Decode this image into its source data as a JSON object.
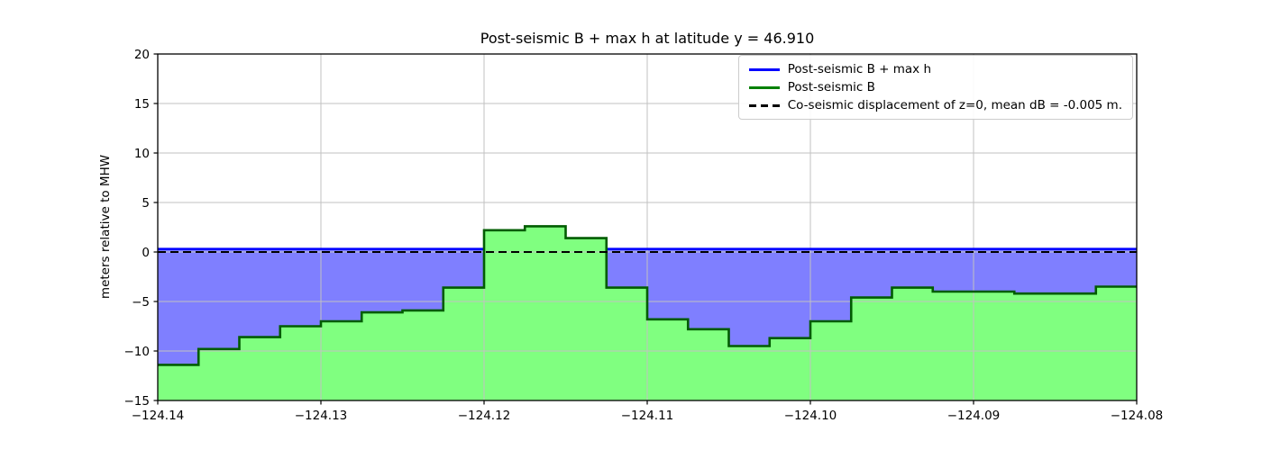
{
  "chart_data": {
    "type": "area",
    "title": "Post-seismic B + max h at latitude y = 46.910",
    "xlabel": "",
    "ylabel": "meters relative to MHW",
    "xlim": [
      -124.14,
      -124.08
    ],
    "ylim": [
      -15,
      20
    ],
    "grid": true,
    "xticks": [
      {
        "v": -124.14,
        "label": "−124.14"
      },
      {
        "v": -124.13,
        "label": "−124.13"
      },
      {
        "v": -124.12,
        "label": "−124.12"
      },
      {
        "v": -124.11,
        "label": "−124.11"
      },
      {
        "v": -124.1,
        "label": "−124.10"
      },
      {
        "v": -124.09,
        "label": "−124.09"
      },
      {
        "v": -124.08,
        "label": "−124.08"
      }
    ],
    "yticks": [
      {
        "v": 20,
        "label": "20"
      },
      {
        "v": 15,
        "label": "15"
      },
      {
        "v": 10,
        "label": "10"
      },
      {
        "v": 5,
        "label": "5"
      },
      {
        "v": 0,
        "label": "0"
      },
      {
        "v": -5,
        "label": "−5"
      },
      {
        "v": -10,
        "label": "−10"
      },
      {
        "v": -15,
        "label": "−15"
      }
    ],
    "colors": {
      "blue_line": "#0000ff",
      "green_line": "#015c01",
      "green_fill": "#80ff80",
      "purple_fill": "#7f7fff",
      "dashed_line": "#000000",
      "grid": "#c2c2c2",
      "legend_green": "#008000",
      "spine": "#000000"
    },
    "legend": {
      "position": "upper-right",
      "entries": [
        {
          "label": "Post-seismic B + max h",
          "style": "solid",
          "color": "#0000ff"
        },
        {
          "label": "Post-seismic B",
          "style": "solid",
          "color": "#008000"
        },
        {
          "label": "Co-seismic displacement of z=0, mean dB = -0.005 m.",
          "style": "dashed",
          "color": "#000000"
        }
      ]
    },
    "series": [
      {
        "name": "Post-seismic B + max h",
        "type": "hline",
        "value": 0.3
      },
      {
        "name": "Co-seismic displacement of z=0",
        "type": "hline",
        "value": 0.0,
        "dashed": true
      },
      {
        "name": "Post-seismic B",
        "type": "steps",
        "x_start": -124.14,
        "x_step": 0.0025,
        "values": [
          -11.4,
          -9.8,
          -8.6,
          -7.5,
          -7.0,
          -6.1,
          -5.9,
          -3.6,
          2.2,
          2.6,
          1.4,
          -3.6,
          -6.8,
          -7.8,
          -9.5,
          -8.7,
          -7.0,
          -4.6,
          -3.6,
          -4.0,
          -4.0,
          -4.2,
          -4.2,
          -3.5
        ]
      }
    ]
  }
}
